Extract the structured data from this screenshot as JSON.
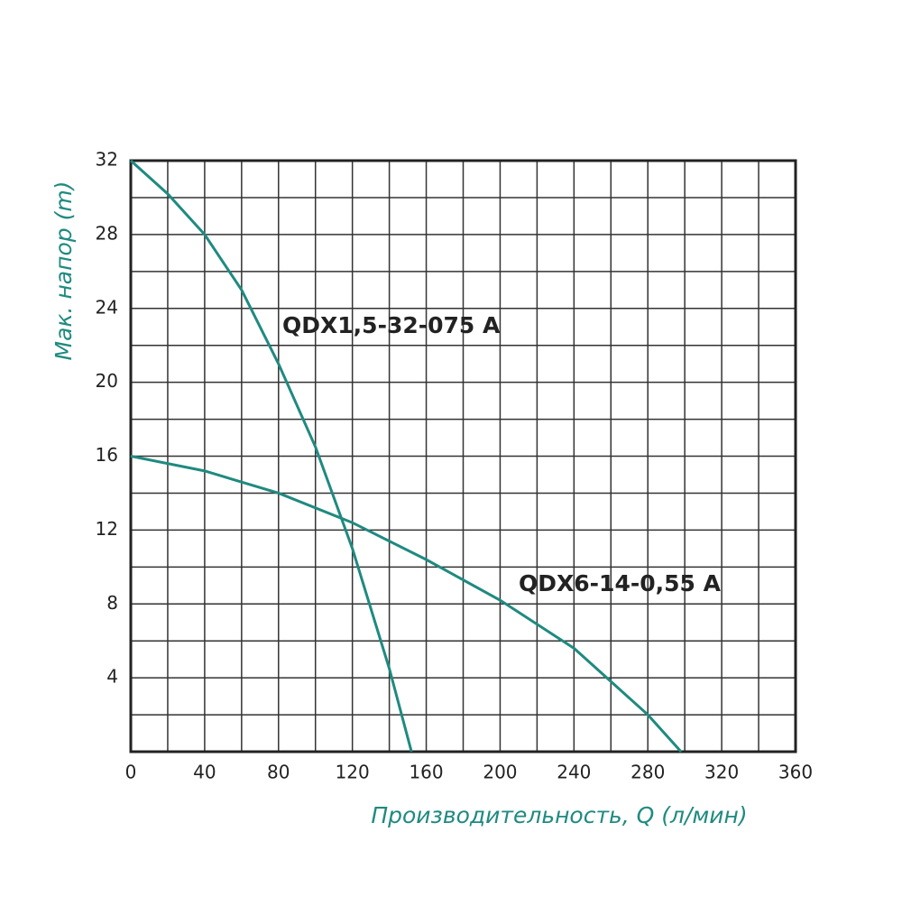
{
  "chart_data": {
    "type": "line",
    "xlabel": "Производительность, Q (л/мин)",
    "ylabel": "Мак. напор (m)",
    "xlim": [
      0,
      360
    ],
    "ylim": [
      0,
      32
    ],
    "xticks": [
      0,
      40,
      80,
      120,
      160,
      200,
      240,
      280,
      320,
      360
    ],
    "yticks": [
      4,
      8,
      12,
      16,
      20,
      24,
      28,
      32
    ],
    "xgrid": [
      20,
      40,
      60,
      80,
      100,
      120,
      140,
      160,
      180,
      200,
      220,
      240,
      260,
      280,
      300,
      320,
      340
    ],
    "ygrid": [
      2,
      4,
      6,
      8,
      10,
      12,
      14,
      16,
      18,
      20,
      22,
      24,
      26,
      28,
      30
    ],
    "grid": true,
    "series": [
      {
        "name": "QDX1,5-32-075 A",
        "color": "#1f8a80",
        "x": [
          0,
          20,
          40,
          60,
          80,
          100,
          120,
          140,
          152
        ],
        "values": [
          32,
          30.2,
          28,
          25,
          21,
          16.5,
          11,
          4.5,
          0
        ]
      },
      {
        "name": "QDX6-14-0,55 A",
        "color": "#1f8a80",
        "x": [
          0,
          40,
          80,
          120,
          160,
          200,
          240,
          280,
          298
        ],
        "values": [
          16,
          15.2,
          14,
          12.4,
          10.4,
          8.2,
          5.6,
          2,
          0
        ]
      }
    ]
  }
}
